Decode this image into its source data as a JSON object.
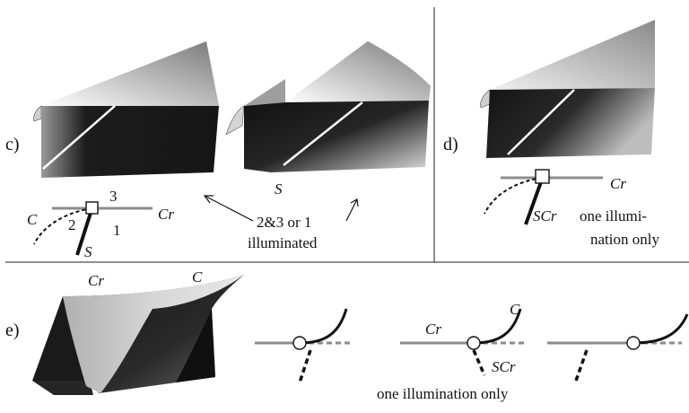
{
  "panels": {
    "c": {
      "label": "c)",
      "surface_label": "S",
      "numbers": [
        "3",
        "2",
        "1"
      ],
      "curve_label": "C",
      "ridge_label": "Cr",
      "end_label": "S",
      "note_line1": "2&3  or  1",
      "note_line2": "illuminated"
    },
    "d": {
      "label": "d)",
      "ridge_label": "Cr",
      "end_label": "SCr",
      "note_line1": "one illumi-",
      "note_line2": "nation only"
    },
    "e": {
      "label": "e)",
      "ridge_label_top": "Cr",
      "curve_label_top": "C",
      "ridge_label": "Cr",
      "curve_label": "C",
      "end_label": "SCr",
      "note": "one illumination only"
    }
  },
  "colors": {
    "ridge": "#8c8c8c",
    "dark": "#1c1c1c",
    "light": "#c8c8c8"
  }
}
